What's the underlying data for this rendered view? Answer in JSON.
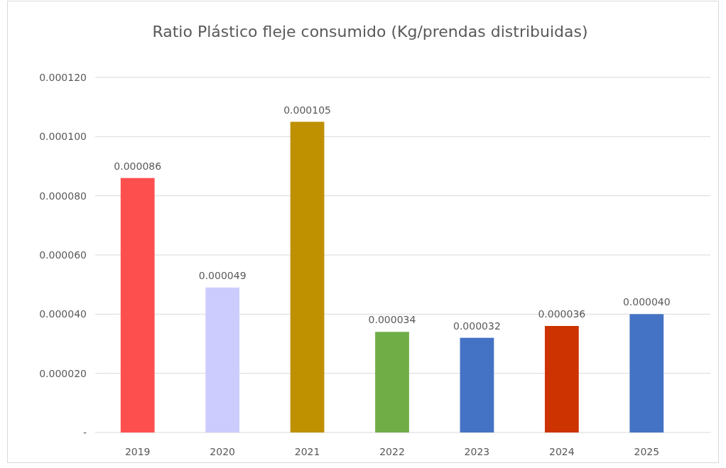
{
  "chart_data": {
    "type": "bar",
    "title": "Ratio Plástico fleje consumido (Kg/prendas distribuidas)",
    "categories": [
      "2019",
      "2020",
      "2021",
      "2022",
      "2023",
      "2024",
      "2025"
    ],
    "values": [
      8.6e-05,
      4.9e-05,
      0.000105,
      3.4e-05,
      3.2e-05,
      3.6e-05,
      4e-05
    ],
    "value_labels": [
      "0.000086",
      "0.000049",
      "0.000105",
      "0.000034",
      "0.000032",
      "0.000036",
      "0.000040"
    ],
    "colors": [
      "#fe4f4f",
      "#ccccff",
      "#bf9000",
      "#70ad47",
      "#4472c4",
      "#cc3300",
      "#4472c4"
    ],
    "ylim": [
      0,
      0.00012
    ],
    "yticks": [
      {
        "value": 0,
        "label": "-"
      },
      {
        "value": 2e-05,
        "label": "0.000020"
      },
      {
        "value": 4e-05,
        "label": "0.000040"
      },
      {
        "value": 6e-05,
        "label": "0.000060"
      },
      {
        "value": 8e-05,
        "label": "0.000080"
      },
      {
        "value": 0.0001,
        "label": "0.000100"
      },
      {
        "value": 0.00012,
        "label": "0.000120"
      }
    ],
    "grid": "y"
  }
}
